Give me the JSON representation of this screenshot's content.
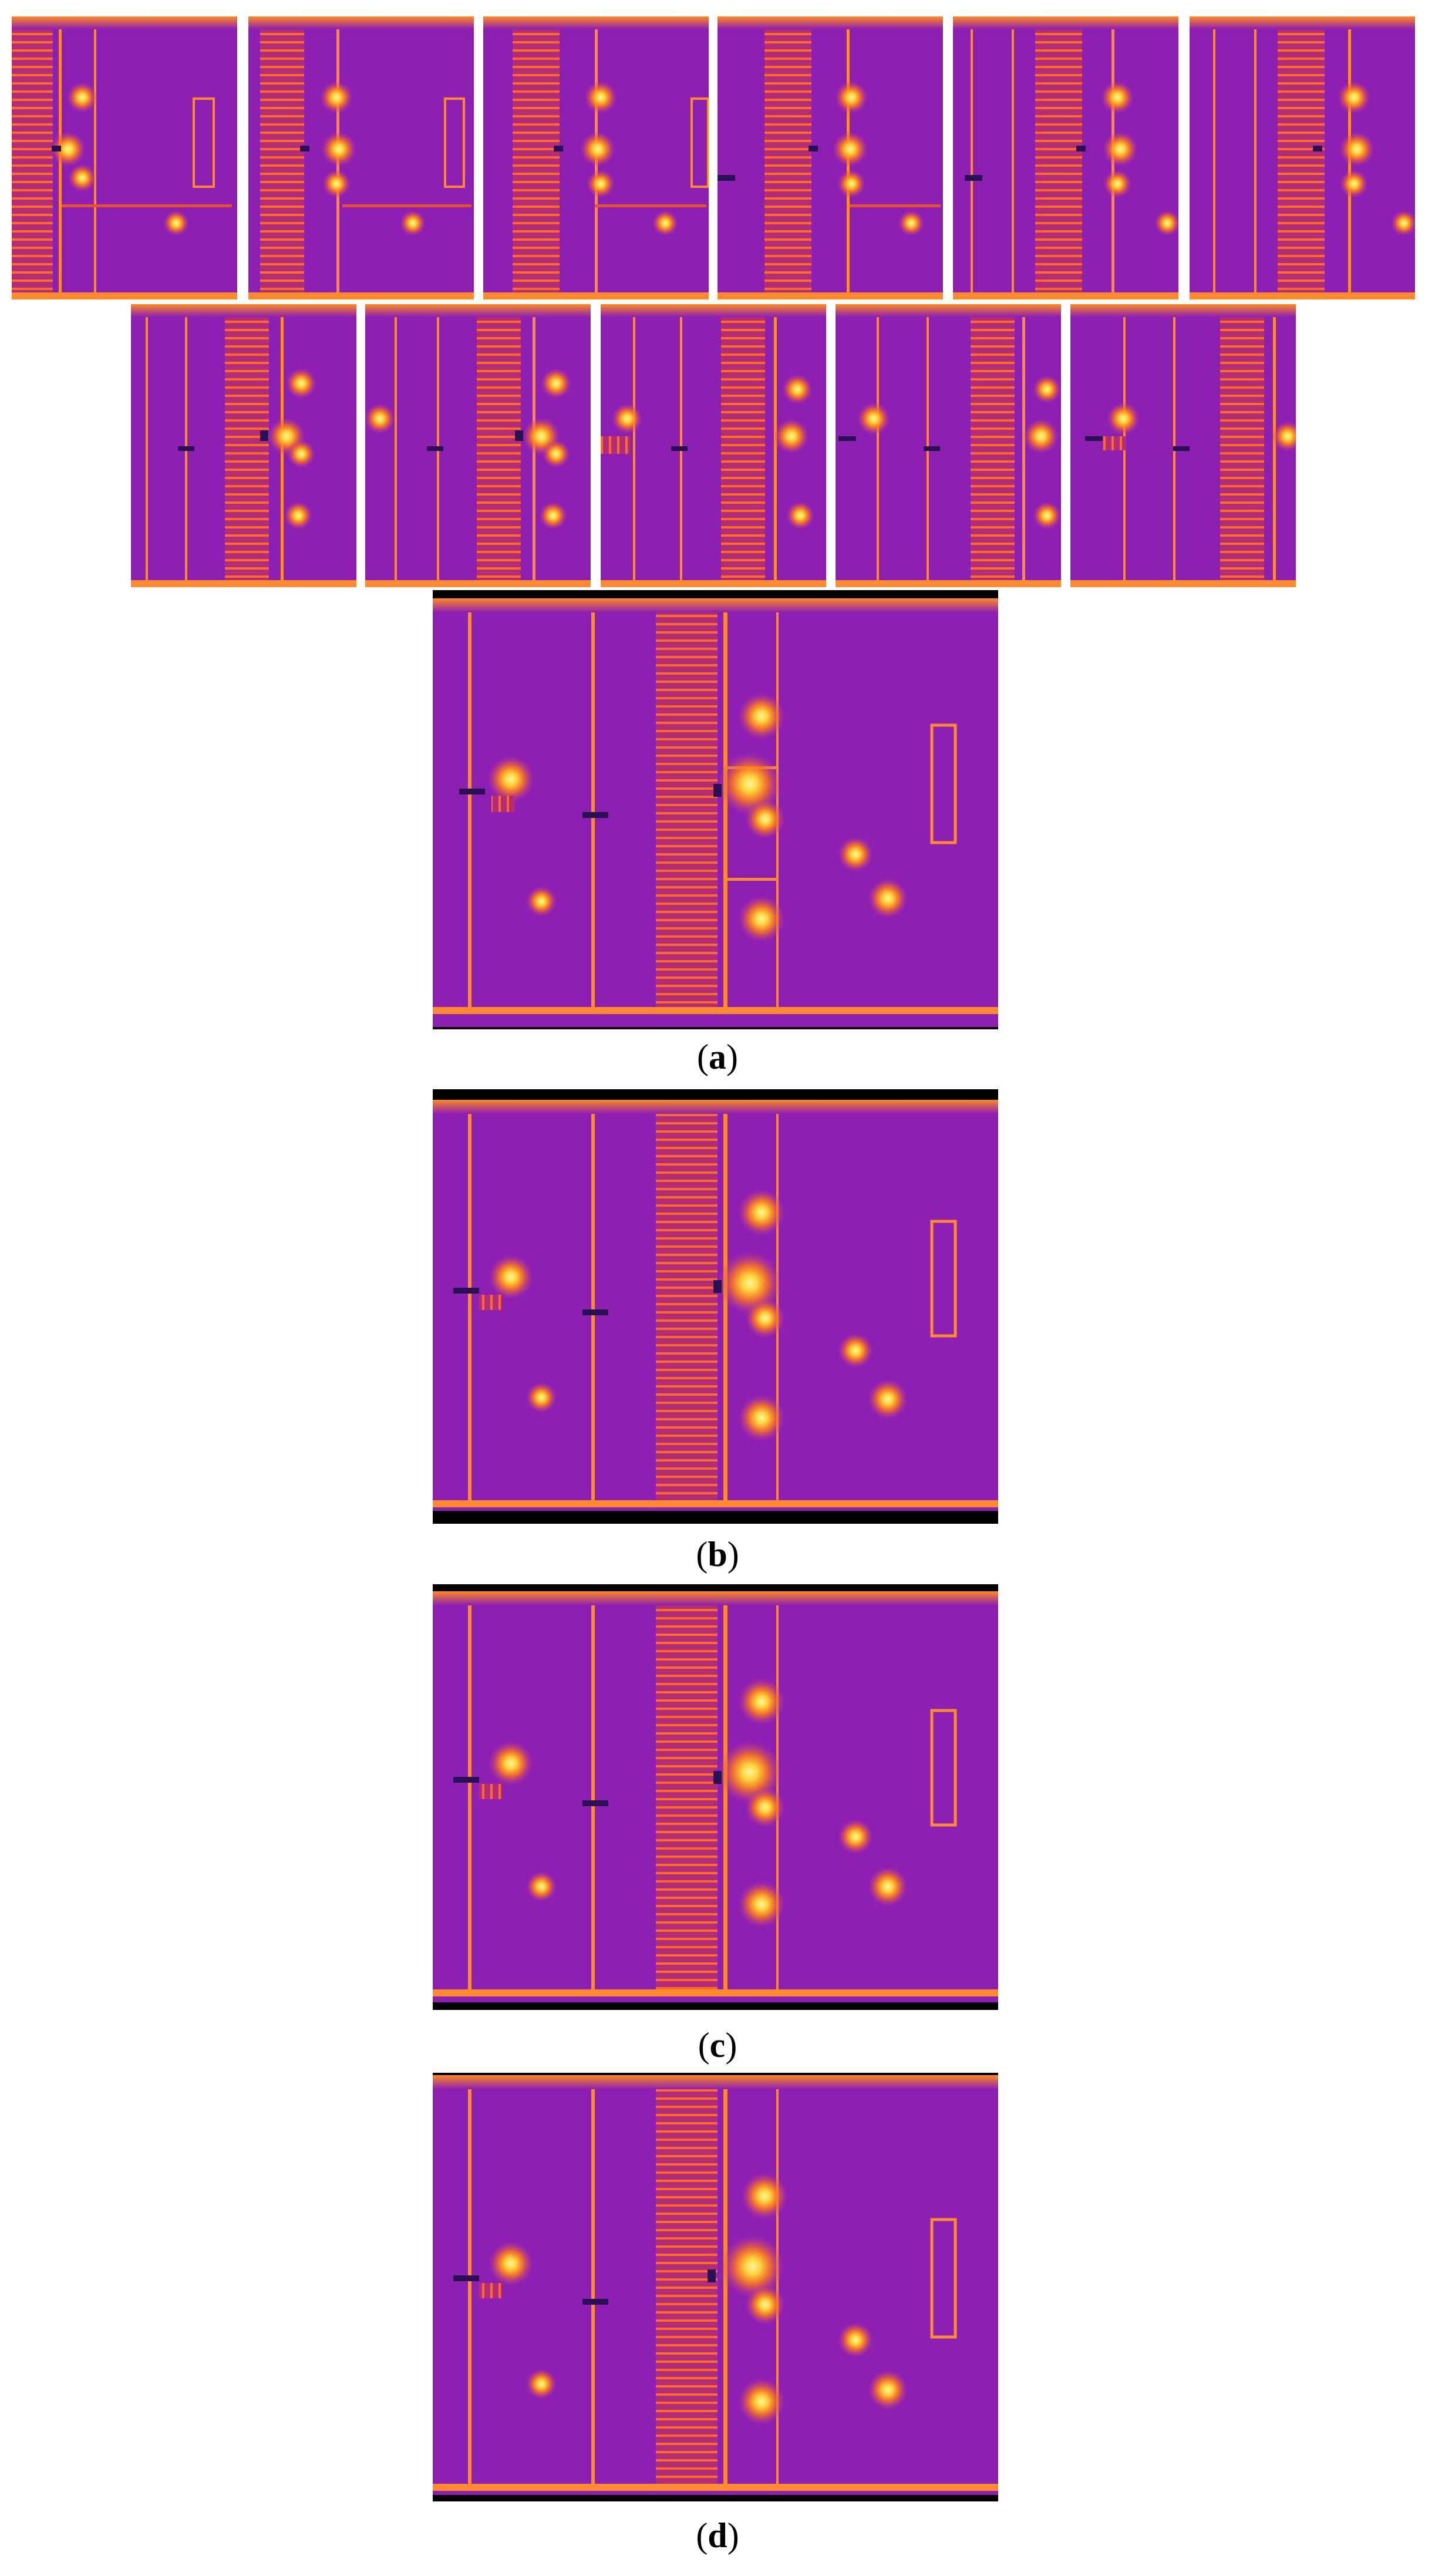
{
  "figure": {
    "thermal_palette": {
      "base": "#8e1fb3",
      "mid": "#c2398d",
      "warm": "#ff7a1a",
      "hot": "#ffd23a",
      "cold": "#2a1054",
      "background": "#000000"
    },
    "input_frames": {
      "row1_count": 6,
      "row2_count": 5,
      "description_icon": "thermal-frame-icon"
    },
    "panels": [
      {
        "id": "a",
        "caption_open": "(",
        "caption_letter": "a",
        "caption_close": ")"
      },
      {
        "id": "b",
        "caption_open": "(",
        "caption_letter": "b",
        "caption_close": ")"
      },
      {
        "id": "c",
        "caption_open": "(",
        "caption_letter": "c",
        "caption_close": ")"
      },
      {
        "id": "d",
        "caption_open": "(",
        "caption_letter": "d",
        "caption_close": ")"
      }
    ]
  }
}
